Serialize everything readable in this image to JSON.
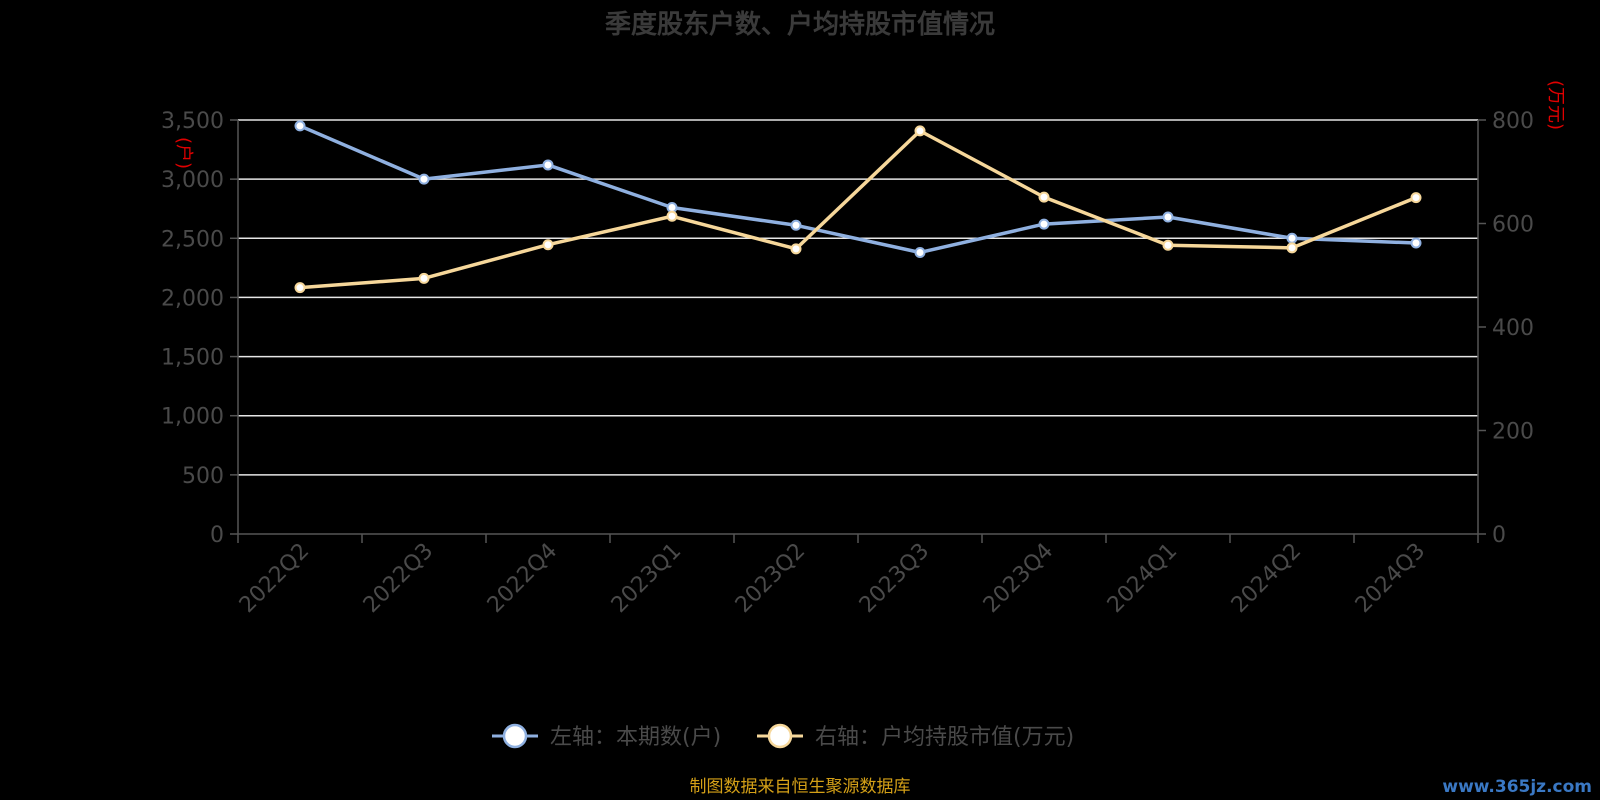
{
  "chart_data": {
    "type": "line",
    "title": "季度股东户数、户均持股市值情况",
    "categories": [
      "2022Q2",
      "2022Q3",
      "2022Q4",
      "2023Q1",
      "2023Q2",
      "2023Q3",
      "2023Q4",
      "2024Q1",
      "2024Q2",
      "2024Q3"
    ],
    "y_left": {
      "unit": "(户)",
      "ylim": [
        0,
        3500
      ],
      "ticks": [
        0,
        500,
        1000,
        1500,
        2000,
        2500,
        3000,
        3500
      ],
      "tick_labels": [
        "0",
        "500",
        "1,000",
        "1,500",
        "2,000",
        "2,500",
        "3,000",
        "3,500"
      ]
    },
    "y_right": {
      "unit": "(万元)",
      "ylim": [
        0,
        800
      ],
      "ticks": [
        0,
        200,
        400,
        600,
        800
      ],
      "tick_labels": [
        "0",
        "200",
        "400",
        "600",
        "800"
      ]
    },
    "grid": true,
    "legend_position": "bottom",
    "series": [
      {
        "name": "左轴：本期数(户)",
        "axis": "left",
        "color": "#8fb0e0",
        "values": [
          3450,
          3000,
          3120,
          2760,
          2610,
          2380,
          2620,
          2680,
          2500,
          2460
        ]
      },
      {
        "name": "右轴：户均持股市值(万元)",
        "axis": "right",
        "color": "#f6d79a",
        "values": [
          476,
          494,
          559,
          614,
          551,
          779,
          651,
          558,
          553,
          650
        ]
      }
    ]
  },
  "footer": {
    "source": "制图数据来自恒生聚源数据库",
    "watermark": "www.365jz.com"
  }
}
